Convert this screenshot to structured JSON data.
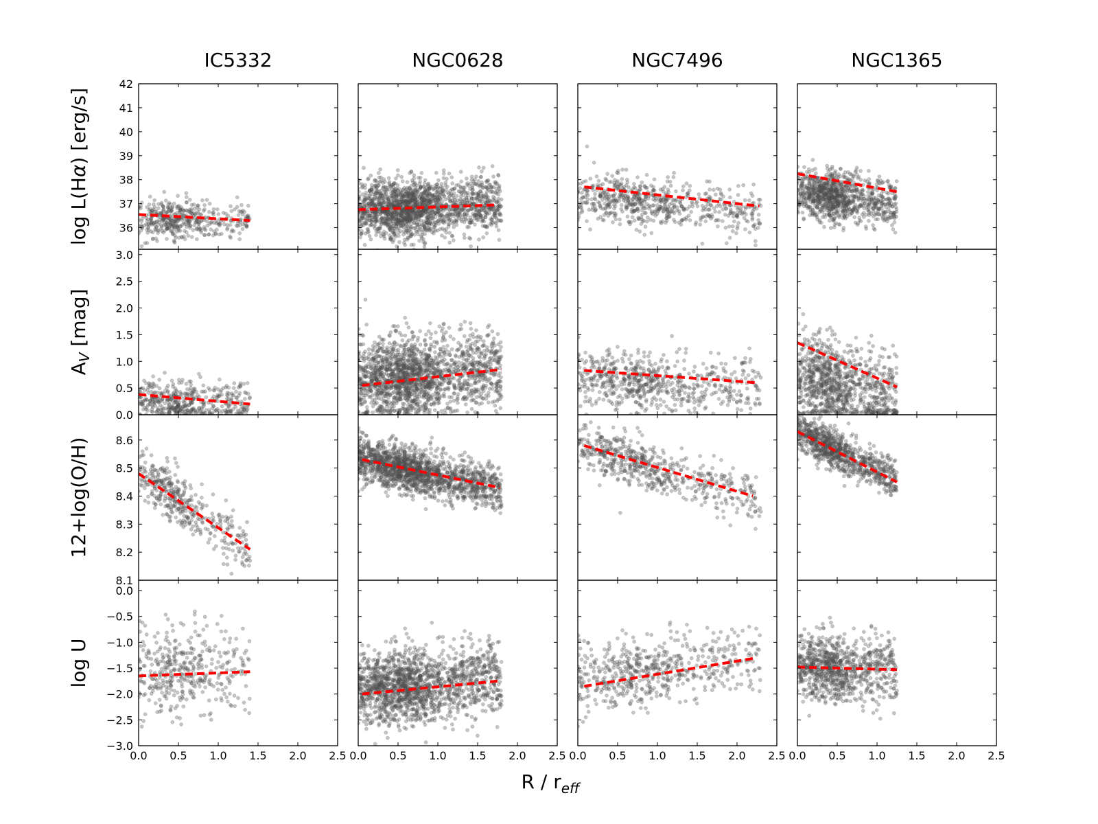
{
  "chart_data": {
    "type": "scatter",
    "layout": "4x4 grid of scatter panels with shared x axis",
    "xlabel": "R / r",
    "xlabel_subscript": "eff",
    "xlim": [
      0.0,
      2.5
    ],
    "xticks": [
      0.0,
      0.5,
      1.0,
      1.5,
      2.0,
      2.5
    ],
    "xtick_labels": [
      "0.0",
      "0.5",
      "1.0",
      "1.5",
      "2.0",
      "2.5"
    ],
    "columns": [
      {
        "name": "IC5332",
        "rmax": 1.4,
        "n": 450
      },
      {
        "name": "NGC0628",
        "rmax": 1.8,
        "n": 1800
      },
      {
        "name": "NGC7496",
        "rmax": 2.3,
        "n": 650
      },
      {
        "name": "NGC1365",
        "rmax": 1.25,
        "n": 1000
      }
    ],
    "rows": [
      {
        "key": "lha",
        "label_parts": [
          "log L(H",
          "α",
          ") [erg/s]"
        ],
        "ylim": [
          35.1,
          42.0
        ],
        "yticks": [
          36,
          37,
          38,
          39,
          40,
          41,
          42
        ],
        "ytick_labels": [
          "36",
          "37",
          "38",
          "39",
          "40",
          "41",
          "42"
        ],
        "fits": [
          {
            "x": [
              0.0,
              1.4
            ],
            "y": [
              36.55,
              36.3
            ]
          },
          {
            "x": [
              0.0,
              1.75
            ],
            "y": [
              36.75,
              36.95
            ]
          },
          {
            "x": [
              0.08,
              2.28
            ],
            "y": [
              37.7,
              36.9
            ]
          },
          {
            "x": [
              0.0,
              1.25
            ],
            "y": [
              38.25,
              37.5
            ]
          }
        ],
        "scatter": [
          {
            "center": 36.4,
            "spread": 0.45,
            "slope": -0.1
          },
          {
            "center": 36.75,
            "spread": 0.65,
            "slope": 0.1
          },
          {
            "center": 37.3,
            "spread": 0.55,
            "slope": -0.3
          },
          {
            "center": 37.5,
            "spread": 0.55,
            "slope": -0.4
          }
        ]
      },
      {
        "key": "av",
        "label_parts": [
          "A",
          "V",
          " [mag]"
        ],
        "ylim": [
          0.0,
          3.1
        ],
        "yticks": [
          0.0,
          0.5,
          1.0,
          1.5,
          2.0,
          2.5,
          3.0
        ],
        "ytick_labels": [
          "0.0",
          "0.5",
          "1.0",
          "1.5",
          "2.0",
          "2.5",
          "3.0"
        ],
        "fits": [
          {
            "x": [
              0.0,
              1.4
            ],
            "y": [
              0.38,
              0.2
            ]
          },
          {
            "x": [
              0.05,
              1.8
            ],
            "y": [
              0.55,
              0.85
            ]
          },
          {
            "x": [
              0.08,
              2.25
            ],
            "y": [
              0.83,
              0.6
            ]
          },
          {
            "x": [
              0.0,
              1.25
            ],
            "y": [
              1.35,
              0.52
            ]
          }
        ],
        "scatter": [
          {
            "center": 0.3,
            "spread": 0.22,
            "slope": -0.1
          },
          {
            "center": 0.6,
            "spread": 0.4,
            "slope": 0.15
          },
          {
            "center": 0.7,
            "spread": 0.3,
            "slope": -0.1
          },
          {
            "center": 0.7,
            "spread": 0.45,
            "slope": -0.3
          }
        ]
      },
      {
        "key": "oh",
        "label_parts": [
          "12+log(O/H)"
        ],
        "ylim": [
          8.1,
          8.69
        ],
        "yticks": [
          8.1,
          8.2,
          8.3,
          8.4,
          8.5,
          8.6
        ],
        "ytick_labels": [
          "8.1",
          "8.2",
          "8.3",
          "8.4",
          "8.5",
          "8.6"
        ],
        "fits": [
          {
            "x": [
              0.0,
              1.4
            ],
            "y": [
              8.48,
              8.21
            ]
          },
          {
            "x": [
              0.05,
              1.78
            ],
            "y": [
              8.53,
              8.43
            ]
          },
          {
            "x": [
              0.08,
              2.2
            ],
            "y": [
              8.58,
              8.4
            ]
          },
          {
            "x": [
              0.0,
              1.25
            ],
            "y": [
              8.63,
              8.45
            ]
          }
        ],
        "scatter": [
          {
            "center": 8.48,
            "spread": 0.05,
            "slope": -0.19
          },
          {
            "center": 8.53,
            "spread": 0.045,
            "slope": -0.06
          },
          {
            "center": 8.58,
            "spread": 0.045,
            "slope": -0.085
          },
          {
            "center": 8.63,
            "spread": 0.04,
            "slope": -0.14
          }
        ]
      },
      {
        "key": "logu",
        "label_parts": [
          "log U"
        ],
        "ylim": [
          -3.0,
          0.2
        ],
        "yticks": [
          -3.0,
          -2.5,
          -2.0,
          -1.5,
          -1.0,
          -0.5,
          0.0
        ],
        "ytick_labels": [
          "−3.0",
          "−2.5",
          "−2.0",
          "−1.5",
          "−1.0",
          "−0.5",
          "0.0"
        ],
        "fits": [
          {
            "x": [
              0.0,
              1.4
            ],
            "y": [
              -1.65,
              -1.57
            ]
          },
          {
            "x": [
              0.05,
              1.75
            ],
            "y": [
              -2.0,
              -1.75
            ]
          },
          {
            "x": [
              0.08,
              2.25
            ],
            "y": [
              -1.85,
              -1.3
            ]
          },
          {
            "x": [
              0.0,
              1.25
            ],
            "y": [
              -1.48,
              -1.53
            ]
          }
        ],
        "scatter": [
          {
            "center": -1.6,
            "spread": 0.45,
            "slope": 0.05
          },
          {
            "center": -1.95,
            "spread": 0.4,
            "slope": 0.15
          },
          {
            "center": -1.75,
            "spread": 0.35,
            "slope": 0.2
          },
          {
            "center": -1.5,
            "spread": 0.35,
            "slope": -0.03
          }
        ]
      }
    ],
    "point_color": "#555555",
    "fit_color": "#ff0000"
  }
}
